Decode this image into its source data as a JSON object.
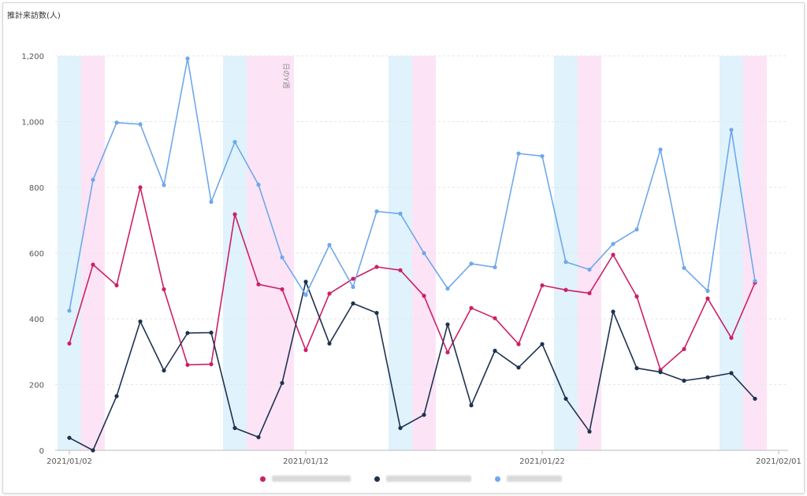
{
  "chart_data": {
    "type": "line",
    "ylabel": "推計来訪数(人)",
    "ylim": [
      0,
      1200
    ],
    "y_ticks": [
      "0",
      "200",
      "400",
      "600",
      "800",
      "1,000",
      "1,200"
    ],
    "x_tick_labels": [
      "2021/01/02",
      "2021/01/12",
      "2021/01/22",
      "2021/02/01"
    ],
    "vertical_annotation": "日のY週",
    "x": [
      "2021/01/02",
      "2021/01/03",
      "2021/01/04",
      "2021/01/05",
      "2021/01/06",
      "2021/01/07",
      "2021/01/08",
      "2021/01/09",
      "2021/01/10",
      "2021/01/11",
      "2021/01/12",
      "2021/01/13",
      "2021/01/14",
      "2021/01/15",
      "2021/01/16",
      "2021/01/17",
      "2021/01/18",
      "2021/01/19",
      "2021/01/20",
      "2021/01/21",
      "2021/01/22",
      "2021/01/23",
      "2021/01/24",
      "2021/01/25",
      "2021/01/26",
      "2021/01/27",
      "2021/01/28",
      "2021/01/29",
      "2021/01/30",
      "2021/01/31"
    ],
    "series": [
      {
        "color": "#cc1f66",
        "values": [
          325,
          565,
          502,
          800,
          490,
          260,
          262,
          718,
          505,
          490,
          305,
          477,
          522,
          558,
          548,
          470,
          298,
          433,
          402,
          323,
          502,
          488,
          478,
          595,
          468,
          245,
          308,
          462,
          342,
          510
        ]
      },
      {
        "color": "#1d3250",
        "values": [
          38,
          0,
          165,
          392,
          243,
          357,
          358,
          68,
          40,
          205,
          513,
          325,
          447,
          418,
          68,
          108,
          383,
          137,
          303,
          252,
          323,
          157,
          57,
          422,
          250,
          238,
          212,
          222,
          235,
          157
        ]
      },
      {
        "color": "#6ea8ec",
        "values": [
          425,
          823,
          997,
          992,
          807,
          1192,
          756,
          938,
          808,
          587,
          473,
          625,
          497,
          727,
          720,
          600,
          492,
          568,
          557,
          903,
          895,
          573,
          550,
          628,
          672,
          915,
          555,
          485,
          975,
          515
        ]
      }
    ],
    "bands": [
      {
        "day_index": 0,
        "color": "#e0f2fb"
      },
      {
        "day_index": 1,
        "color": "#fce4f6"
      },
      {
        "day_index": 7,
        "color": "#e0f2fb"
      },
      {
        "day_index": 8,
        "color": "#fce4f6"
      },
      {
        "day_index": 9,
        "color": "#fce4f6"
      },
      {
        "day_index": 14,
        "color": "#e0f2fb"
      },
      {
        "day_index": 15,
        "color": "#fce4f6"
      },
      {
        "day_index": 21,
        "color": "#e0f2fb"
      },
      {
        "day_index": 22,
        "color": "#fce4f6"
      },
      {
        "day_index": 28,
        "color": "#e0f2fb"
      },
      {
        "day_index": 29,
        "color": "#fce4f6"
      }
    ],
    "grid": true
  },
  "legend": [
    {
      "color": "#cc1f66"
    },
    {
      "color": "#1d3250"
    },
    {
      "color": "#6ea8ec"
    }
  ]
}
